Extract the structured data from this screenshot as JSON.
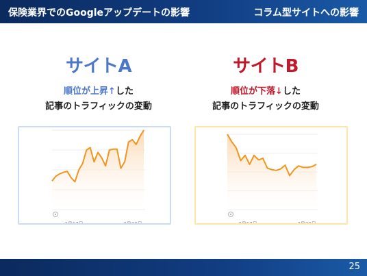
{
  "header": {
    "title": "保険業界でのGoogleアップデートの影響",
    "section": "コラム型サイトへの影響"
  },
  "site_a": {
    "title": "サイトA",
    "caption_line1": "順位が上昇↑",
    "caption_tail": "した",
    "caption_line2": "記事のトラフィックの変動"
  },
  "site_b": {
    "title": "サイトB",
    "caption_line1": "順位が下落↓",
    "caption_tail": "した",
    "caption_line2": "記事のトラフィックの変動"
  },
  "page_number": "25",
  "colors": {
    "line": "#f0951e",
    "fill_top": "#fbd7b0",
    "site_a_accent": "#4d78c9",
    "site_b_accent": "#c0192b"
  },
  "chart_data": [
    {
      "type": "area",
      "tick_labels": [
        "3月17日",
        "3月30日"
      ],
      "ylim": [
        0,
        100
      ],
      "grid": true,
      "values": [
        36,
        42,
        45,
        47,
        48,
        40,
        35,
        50,
        58,
        75,
        78,
        60,
        72,
        65,
        55,
        75,
        76,
        76,
        52,
        60,
        85,
        88,
        82,
        92,
        100
      ]
    },
    {
      "type": "area",
      "tick_labels": [
        "3月17日",
        "3月30日"
      ],
      "ylim": [
        0,
        100
      ],
      "grid": true,
      "values": [
        100,
        90,
        82,
        65,
        72,
        60,
        72,
        66,
        68,
        55,
        53,
        52,
        54,
        59,
        45,
        53,
        58,
        56,
        56,
        57,
        60
      ]
    }
  ]
}
